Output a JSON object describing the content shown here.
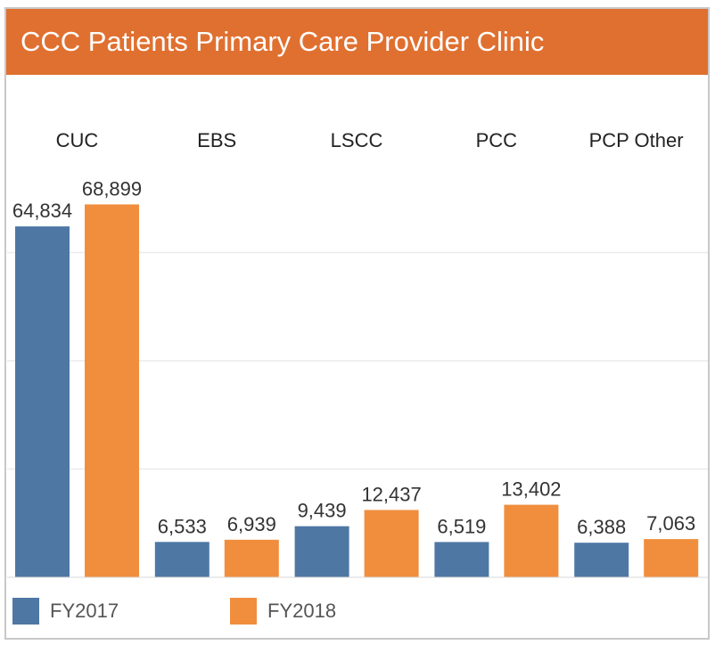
{
  "header": {
    "title": "CCC Patients Primary Care Provider Clinic"
  },
  "colors": {
    "header_bg": "#e07030",
    "FY2017": "#4e77a4",
    "FY2018": "#f08e3e"
  },
  "chart_data": {
    "type": "bar",
    "title": "CCC Patients Primary Care Provider Clinic",
    "categories": [
      "CUC",
      "EBS",
      "LSCC",
      "PCC",
      "PCP Other"
    ],
    "series": [
      {
        "name": "FY2017",
        "values": [
          64834,
          6533,
          9439,
          6519,
          6388
        ],
        "labels": [
          "64,834",
          "6,533",
          "9,439",
          "6,519",
          "6,388"
        ]
      },
      {
        "name": "FY2018",
        "values": [
          68899,
          6939,
          12437,
          13402,
          7063
        ],
        "labels": [
          "68,899",
          "6,939",
          "12,437",
          "13,402",
          "7,063"
        ]
      }
    ],
    "ylim": [
      0,
      80000
    ],
    "grid": true,
    "legend_position": "bottom-left"
  }
}
